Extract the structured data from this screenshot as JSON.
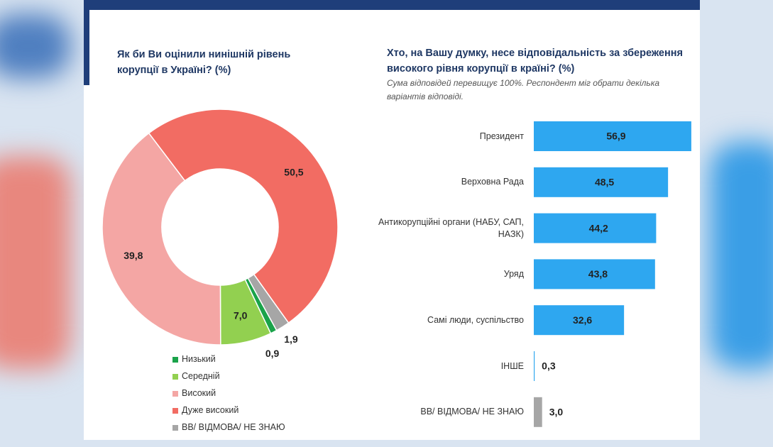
{
  "chart_data": [
    {
      "type": "donut",
      "title": "Як би Ви оцінили нинішній рівень корупції в Україні? (%)",
      "categories": [
        "Низький",
        "Середній",
        "Високий",
        "Дуже високий",
        "ВВ/ ВІДМОВА/ НЕ ЗНАЮ"
      ],
      "values": [
        0.9,
        7.0,
        39.8,
        50.5,
        1.9
      ],
      "value_labels": [
        "0,9",
        "7,0",
        "39,8",
        "50,5",
        "1,9"
      ],
      "colors": [
        "#1aa34a",
        "#92d050",
        "#f4a6a4",
        "#f26c63",
        "#a6a6a6"
      ]
    },
    {
      "type": "hbar",
      "title": "Хто, на Вашу думку, несе відповідальність за збереження високого рівня корупції в країні? (%)",
      "subtitle": "Сума відповідей перевищує 100%. Респондент міг обрати декілька варіантів відповіді.",
      "categories": [
        "Президент",
        "Верховна Рада",
        "Антикорупційні органи (НАБУ, САП, НАЗК)",
        "Уряд",
        "Самі люди, суспільство",
        "ІНШЕ",
        "ВВ/ ВІДМОВА/ НЕ ЗНАЮ"
      ],
      "values": [
        56.9,
        48.5,
        44.2,
        43.8,
        32.6,
        0.3,
        3.0
      ],
      "value_labels": [
        "56,9",
        "48,5",
        "44,2",
        "43,8",
        "32,6",
        "0,3",
        "3,0"
      ],
      "colors": [
        "#2ea7f0",
        "#2ea7f0",
        "#2ea7f0",
        "#2ea7f0",
        "#2ea7f0",
        "#2ea7f0",
        "#a6a6a6"
      ]
    }
  ]
}
